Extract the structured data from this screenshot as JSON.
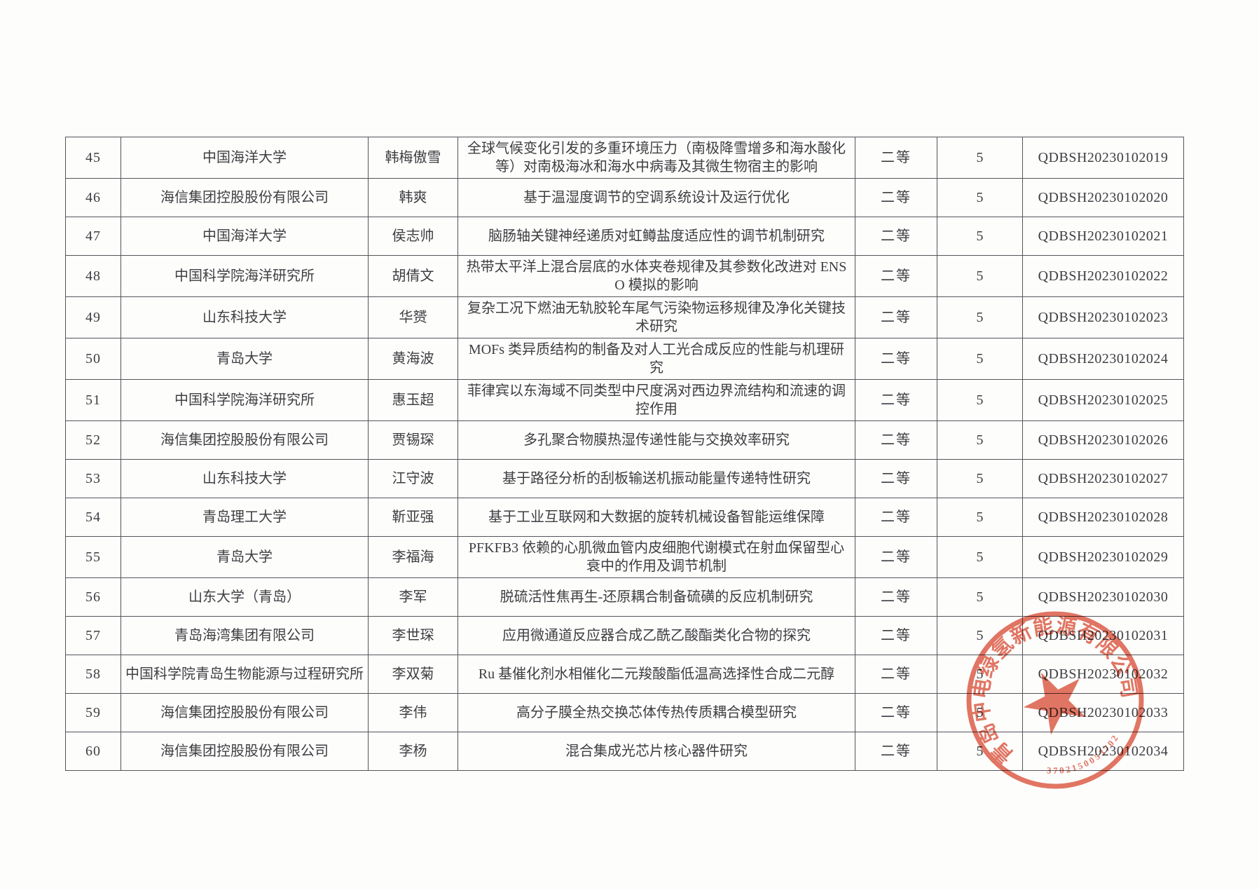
{
  "table": {
    "rows": [
      [
        "45",
        "中国海洋大学",
        "韩梅傲雪",
        "全球气候变化引发的多重环境压力（南极降雪增多和海水酸化等）对南极海冰和海水中病毒及其微生物宿主的影响",
        "二等",
        "5",
        "QDBSH20230102019"
      ],
      [
        "46",
        "海信集团控股股份有限公司",
        "韩爽",
        "基于温湿度调节的空调系统设计及运行优化",
        "二等",
        "5",
        "QDBSH20230102020"
      ],
      [
        "47",
        "中国海洋大学",
        "侯志帅",
        "脑肠轴关键神经递质对虹鳟盐度适应性的调节机制研究",
        "二等",
        "5",
        "QDBSH20230102021"
      ],
      [
        "48",
        "中国科学院海洋研究所",
        "胡倩文",
        "热带太平洋上混合层底的水体夹卷规律及其参数化改进对 ENSO 模拟的影响",
        "二等",
        "5",
        "QDBSH20230102022"
      ],
      [
        "49",
        "山东科技大学",
        "华赟",
        "复杂工况下燃油无轨胶轮车尾气污染物运移规律及净化关键技术研究",
        "二等",
        "5",
        "QDBSH20230102023"
      ],
      [
        "50",
        "青岛大学",
        "黄海波",
        "MOFs 类异质结构的制备及对人工光合成反应的性能与机理研究",
        "二等",
        "5",
        "QDBSH20230102024"
      ],
      [
        "51",
        "中国科学院海洋研究所",
        "惠玉超",
        "菲律宾以东海域不同类型中尺度涡对西边界流结构和流速的调控作用",
        "二等",
        "5",
        "QDBSH20230102025"
      ],
      [
        "52",
        "海信集团控股股份有限公司",
        "贾锡琛",
        "多孔聚合物膜热湿传递性能与交换效率研究",
        "二等",
        "5",
        "QDBSH20230102026"
      ],
      [
        "53",
        "山东科技大学",
        "江守波",
        "基于路径分析的刮板输送机振动能量传递特性研究",
        "二等",
        "5",
        "QDBSH20230102027"
      ],
      [
        "54",
        "青岛理工大学",
        "靳亚强",
        "基于工业互联网和大数据的旋转机械设备智能运维保障",
        "二等",
        "5",
        "QDBSH20230102028"
      ],
      [
        "55",
        "青岛大学",
        "李福海",
        "PFKFB3 依赖的心肌微血管内皮细胞代谢模式在射血保留型心衰中的作用及调节机制",
        "二等",
        "5",
        "QDBSH20230102029"
      ],
      [
        "56",
        "山东大学（青岛）",
        "李军",
        "脱硫活性焦再生-还原耦合制备硫磺的反应机制研究",
        "二等",
        "5",
        "QDBSH20230102030"
      ],
      [
        "57",
        "青岛海湾集团有限公司",
        "李世琛",
        "应用微通道反应器合成乙酰乙酸酯类化合物的探究",
        "二等",
        "5",
        "QDBSH20230102031"
      ],
      [
        "58",
        "中国科学院青岛生物能源与过程研究所",
        "李双菊",
        "Ru 基催化剂水相催化二元羧酸酯低温高选择性合成二元醇",
        "二等",
        "5",
        "QDBSH20230102032"
      ],
      [
        "59",
        "海信集团控股股份有限公司",
        "李伟",
        "高分子膜全热交换芯体传热传质耦合模型研究",
        "二等",
        "5",
        "QDBSH20230102033"
      ],
      [
        "60",
        "海信集团控股股份有限公司",
        "李杨",
        "混合集成光芯片核心器件研究",
        "二等",
        "5",
        "QDBSH20230102034"
      ]
    ]
  },
  "stamp": {
    "company": "青岛中电绿氢新能源有限公司",
    "serial": "3702150053702",
    "color": "#dd5742"
  }
}
